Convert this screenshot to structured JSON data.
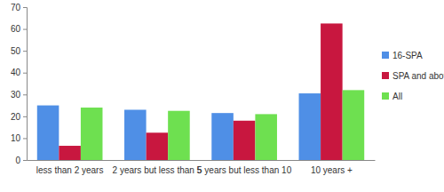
{
  "chart_data": {
    "type": "bar",
    "categories": [
      "less than 2 years",
      "2 years but less than 5",
      "5 years but less than 10",
      "10 years +"
    ],
    "series": [
      {
        "name": "16-SPA",
        "color": "#4f8fe6",
        "values": [
          25,
          23,
          21.5,
          30.5
        ]
      },
      {
        "name": "SPA and above",
        "color": "#c8173f",
        "values": [
          6.5,
          12.5,
          18,
          62.5
        ]
      },
      {
        "name": "All",
        "color": "#6ee050",
        "values": [
          24,
          22.5,
          21,
          32
        ]
      }
    ],
    "ylim": [
      0,
      70
    ],
    "yticks": [
      0,
      10,
      20,
      30,
      40,
      50,
      60,
      70
    ],
    "grid": false,
    "legend": "right"
  }
}
